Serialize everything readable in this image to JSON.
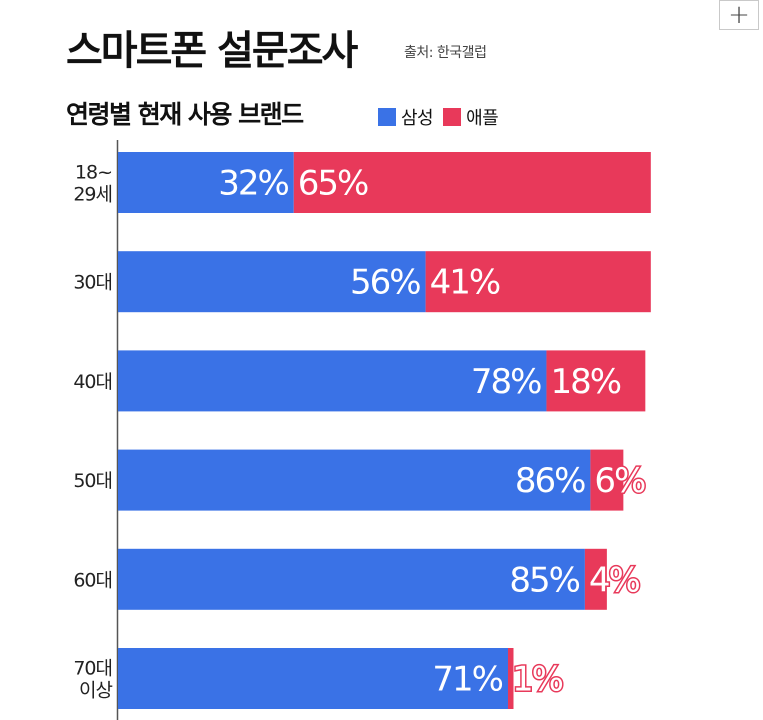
{
  "header": {
    "title": "스마트폰 설문조사",
    "source": "출처: 한국갤럽",
    "expand_icon": "+"
  },
  "chart_data": {
    "type": "bar",
    "orientation": "horizontal",
    "stacked": true,
    "title": "연령별 현재 사용 브랜드",
    "categories": [
      [
        "18~",
        "29세"
      ],
      [
        "30대"
      ],
      [
        "40대"
      ],
      [
        "50대"
      ],
      [
        "60대"
      ],
      [
        "70대",
        "이상"
      ]
    ],
    "series": [
      {
        "name": "삼성",
        "color": "#3a72e6",
        "values": [
          32,
          56,
          78,
          86,
          85,
          71
        ],
        "labels": [
          "32%",
          "56%",
          "78%",
          "86%",
          "85%",
          "71%"
        ]
      },
      {
        "name": "애플",
        "color": "#e8395a",
        "values": [
          65,
          41,
          18,
          6,
          4,
          1
        ],
        "labels": [
          "65%",
          "41%",
          "18%",
          "6%",
          "4%",
          "1%"
        ]
      }
    ],
    "xlim": [
      0,
      100
    ],
    "legend_position": "top",
    "grid": false
  }
}
